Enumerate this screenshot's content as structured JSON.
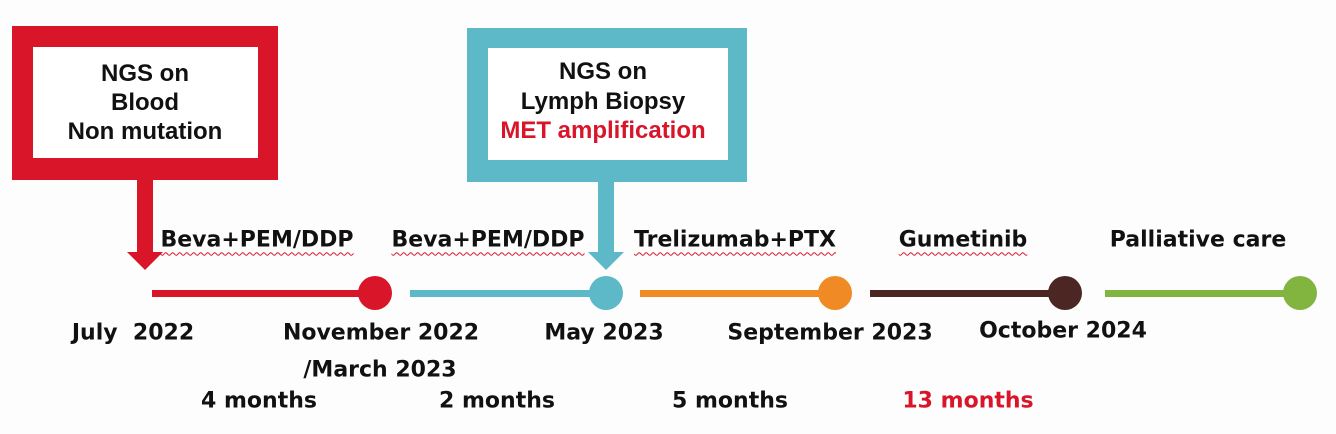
{
  "colors": {
    "red": "#d9152a",
    "teal": "#5db8c7",
    "orange": "#ef8a24",
    "brown": "#4b2623",
    "green": "#82b53f"
  },
  "callouts": [
    {
      "lines": [
        "NGS on",
        "Blood",
        "Non mutation"
      ]
    },
    {
      "lines": [
        "NGS on",
        "Lymph Biopsy"
      ],
      "highlight": "MET amplification"
    }
  ],
  "treatments": [
    "Beva+PEM/DDP",
    "Beva+PEM/DDP",
    "Trelizumab+PTX",
    "Gumetinib",
    "Palliative care"
  ],
  "dates": [
    "July  2022",
    "November 2022",
    "/March 2023",
    "May 2023",
    "September 2023",
    "October 2024"
  ],
  "durations": [
    "4 months",
    "2 months",
    "5 months",
    "13 months"
  ]
}
